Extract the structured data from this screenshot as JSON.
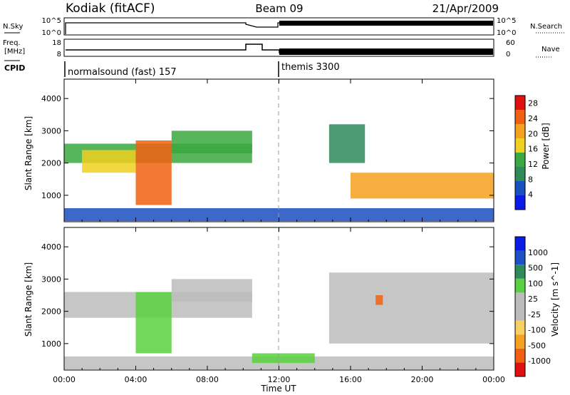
{
  "header": {
    "station": "Kodiak (fitACF)",
    "beam": "Beam 09",
    "date": "21/Apr/2009"
  },
  "strips": {
    "nsky": {
      "label": "N.Sky",
      "ticks": [
        "10^5",
        "10^0"
      ],
      "right_label": "N.Search",
      "right_ticks": [
        "10^5",
        "10^0"
      ]
    },
    "freq": {
      "label_line1": "Freq.",
      "label_line2": "[MHz]",
      "ticks": [
        "18",
        "8"
      ],
      "right_label": "Nave",
      "right_ticks": [
        "60",
        "0"
      ]
    },
    "cpid": {
      "label": "CPID",
      "modes": [
        {
          "text": "normalsound (fast) 157",
          "start_hour": 0
        },
        {
          "text": "themis 3300",
          "start_hour": 12
        }
      ]
    }
  },
  "time_axis": {
    "label": "Time UT",
    "ticks": [
      "00:00",
      "04:00",
      "08:00",
      "12:00",
      "16:00",
      "20:00",
      "00:00"
    ]
  },
  "colors": {
    "power_scale": [
      "#0a1be8",
      "#1a4fc0",
      "#2f8a5a",
      "#39a83e",
      "#f0d020",
      "#f5a020",
      "#f06010",
      "#e01010"
    ],
    "velocity_scale": [
      "#e01010",
      "#f06010",
      "#f5a020",
      "#f8d060",
      "#bcbcbc",
      "#bcbcbc",
      "#5ad040",
      "#2f8a5a",
      "#1e50c8",
      "#0a1be8"
    ]
  },
  "chart_data": [
    {
      "type": "heatmap",
      "title": "",
      "xlabel": "",
      "ylabel": "Slant Range [km]",
      "xlim": [
        0,
        24
      ],
      "ylim": [
        180,
        4600
      ],
      "yticks": [
        "1000",
        "2000",
        "3000",
        "4000"
      ],
      "colorbar": {
        "label": "Power [dB]",
        "ticks": [
          "4",
          "8",
          "12",
          "16",
          "20",
          "24",
          "28"
        ],
        "range": [
          0,
          30
        ]
      },
      "regions": [
        {
          "x": [
            0.0,
            24.0
          ],
          "y": [
            200,
            600
          ],
          "value": 6
        },
        {
          "x": [
            0.0,
            10.5
          ],
          "y": [
            2000,
            2600
          ],
          "value": 12
        },
        {
          "x": [
            1.0,
            4.0
          ],
          "y": [
            1700,
            2400
          ],
          "value": 16
        },
        {
          "x": [
            4.0,
            6.0
          ],
          "y": [
            700,
            2700
          ],
          "value": 26
        },
        {
          "x": [
            6.0,
            10.5
          ],
          "y": [
            2300,
            3000
          ],
          "value": 14
        },
        {
          "x": [
            14.8,
            16.8
          ],
          "y": [
            2000,
            3200
          ],
          "value": 10
        },
        {
          "x": [
            16.0,
            24.0
          ],
          "y": [
            900,
            1700
          ],
          "value": 20
        }
      ]
    },
    {
      "type": "heatmap",
      "title": "",
      "xlabel": "Time UT",
      "ylabel": "Slant Range [km]",
      "xlim": [
        0,
        24
      ],
      "ylim": [
        180,
        4600
      ],
      "yticks": [
        "1000",
        "2000",
        "3000",
        "4000"
      ],
      "colorbar": {
        "label": "Velocity [m s^-1]",
        "ticks": [
          "1000",
          "500",
          "100",
          "25",
          "-25",
          "-100",
          "-500",
          "-1000"
        ],
        "range": [
          -1000,
          1000
        ]
      },
      "regions": [
        {
          "x": [
            0.0,
            24.0
          ],
          "y": [
            200,
            600
          ],
          "value": 0
        },
        {
          "x": [
            0.0,
            10.5
          ],
          "y": [
            1800,
            2600
          ],
          "value": 0
        },
        {
          "x": [
            4.0,
            6.0
          ],
          "y": [
            700,
            2600
          ],
          "value": 100
        },
        {
          "x": [
            6.0,
            10.5
          ],
          "y": [
            2300,
            3000
          ],
          "value": 0
        },
        {
          "x": [
            10.5,
            14.0
          ],
          "y": [
            400,
            700
          ],
          "value": 100
        },
        {
          "x": [
            14.8,
            24.0
          ],
          "y": [
            1000,
            3200
          ],
          "value": 0
        },
        {
          "x": [
            17.4,
            17.8
          ],
          "y": [
            2200,
            2500
          ],
          "value": -100
        }
      ]
    }
  ]
}
